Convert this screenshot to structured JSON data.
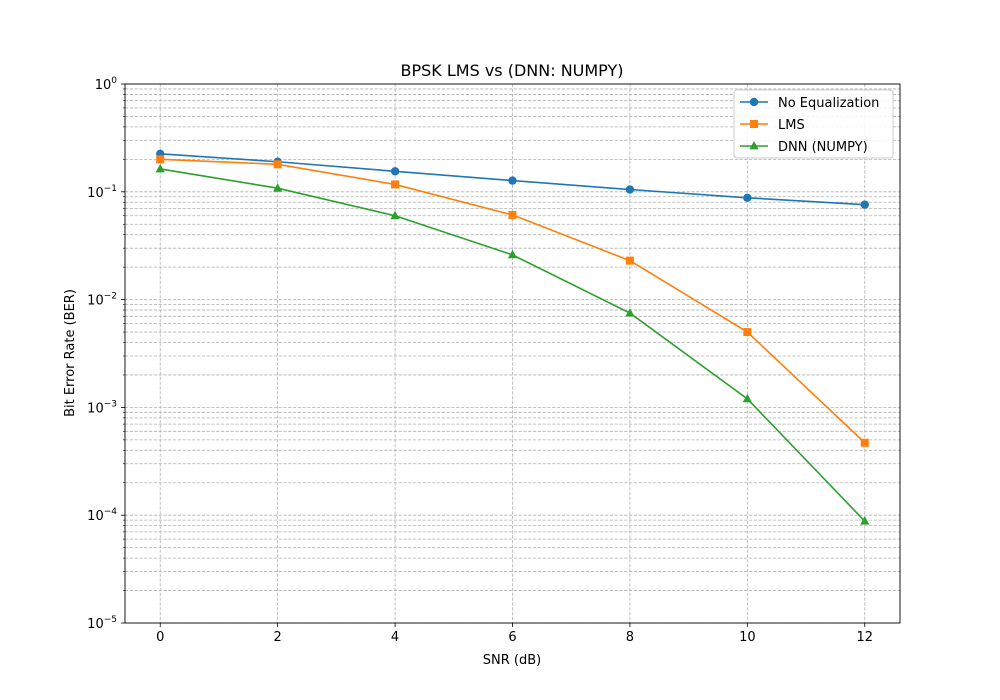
{
  "chart_data": {
    "type": "line",
    "title": "BPSK LMS vs (DNN: NUMPY)",
    "xlabel": "SNR (dB)",
    "ylabel": "Bit Error Rate (BER)",
    "yscale": "log",
    "xlim": [
      -0.6,
      12.6
    ],
    "ylim": [
      1e-05,
      1
    ],
    "x_ticks": [
      "0",
      "2",
      "4",
      "6",
      "8",
      "10",
      "12"
    ],
    "y_ticks": [
      {
        "base": "10",
        "exp": "−5"
      },
      {
        "base": "10",
        "exp": "−4"
      },
      {
        "base": "10",
        "exp": "−3"
      },
      {
        "base": "10",
        "exp": "−2"
      },
      {
        "base": "10",
        "exp": "−1"
      },
      {
        "base": "10",
        "exp": "0"
      }
    ],
    "grid": true,
    "legend_position": "upper-right",
    "x": [
      0,
      2,
      4,
      6,
      8,
      10,
      12
    ],
    "series": [
      {
        "name": "No Equalization",
        "color": "#1f77b4",
        "marker": "circle",
        "values": [
          0.225,
          0.19,
          0.155,
          0.127,
          0.105,
          0.088,
          0.076
        ]
      },
      {
        "name": "LMS",
        "color": "#ff7f0e",
        "marker": "square",
        "values": [
          0.2,
          0.18,
          0.117,
          0.061,
          0.023,
          0.005,
          0.00047
        ]
      },
      {
        "name": "DNN (NUMPY)",
        "color": "#2ca02c",
        "marker": "triangle",
        "values": [
          0.163,
          0.108,
          0.06,
          0.026,
          0.0075,
          0.0012,
          8.8e-05
        ]
      }
    ]
  }
}
